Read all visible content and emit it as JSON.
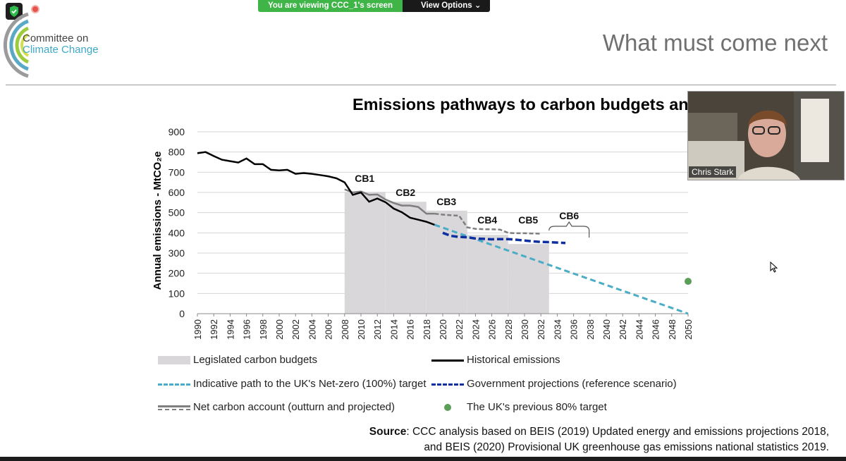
{
  "zoom": {
    "viewing_text": "You are viewing CCC_1's screen",
    "view_options": "View Options"
  },
  "slide": {
    "org_line1": "Committee on",
    "org_line2": "Climate Change",
    "title": "What must come next",
    "chart_title": "Emissions pathways to carbon budgets and t",
    "source_label": "Source",
    "source_line1": ": CCC analysis based on BEIS (2019) Updated energy and emissions projections 2018,",
    "source_line2": "and BEIS (2020) Provisional UK greenhouse gas emissions national statistics 2019."
  },
  "video": {
    "participant_name": "Chris Stark"
  },
  "legend": {
    "budgets": "Legislated carbon budgets",
    "historical": "Historical emissions",
    "netzero": "Indicative path to the UK's Net-zero (100%) target",
    "govt": "Government projections (reference scenario)",
    "netcarbon": "Net carbon account (outturn and projected)",
    "target80": "The UK's previous 80% target"
  },
  "colors": {
    "budget_fill": "#d9d7da",
    "historical": "#000000",
    "netzero": "#4bacc6",
    "govt": "#0e2fa0",
    "netcarbon": "#7f7f7f",
    "target80": "#5a9e57",
    "zoom_green": "#3fb548"
  },
  "chart_data": {
    "type": "line",
    "ylabel": "Annual emissions - MtCO₂e",
    "ylim": [
      0,
      900
    ],
    "yticks": [
      0,
      100,
      200,
      300,
      400,
      500,
      600,
      700,
      800,
      900
    ],
    "xlim": [
      1990,
      2050
    ],
    "xticks": [
      1990,
      1992,
      1994,
      1996,
      1998,
      2000,
      2002,
      2004,
      2006,
      2008,
      2010,
      2012,
      2014,
      2016,
      2018,
      2020,
      2022,
      2024,
      2026,
      2028,
      2030,
      2032,
      2034,
      2036,
      2038,
      2040,
      2042,
      2044,
      2046,
      2048,
      2050
    ],
    "grid": true,
    "carbon_budgets": [
      {
        "label": "CB1",
        "x0": 2008,
        "x1": 2012.9,
        "value": 603
      },
      {
        "label": "CB2",
        "x0": 2013,
        "x1": 2017.9,
        "value": 554
      },
      {
        "label": "CB3",
        "x0": 2018,
        "x1": 2022.9,
        "value": 510
      },
      {
        "label": "CB4",
        "x0": 2023,
        "x1": 2027.9,
        "value": 390
      },
      {
        "label": "CB5",
        "x0": 2028,
        "x1": 2032.9,
        "value": 345
      },
      {
        "label": "CB6",
        "x0": 2033,
        "x1": 2037.9,
        "value": null
      }
    ],
    "series": [
      {
        "name": "Historical emissions",
        "x": [
          1990,
          1991,
          1992,
          1993,
          1994,
          1995,
          1996,
          1997,
          1998,
          1999,
          2000,
          2001,
          2002,
          2003,
          2004,
          2005,
          2006,
          2007,
          2008,
          2009,
          2010,
          2011,
          2012,
          2013,
          2014,
          2015,
          2016,
          2017,
          2018,
          2019
        ],
        "values": [
          794,
          800,
          780,
          762,
          755,
          748,
          768,
          740,
          740,
          712,
          709,
          712,
          692,
          696,
          692,
          686,
          680,
          670,
          650,
          588,
          600,
          554,
          570,
          552,
          520,
          502,
          475,
          465,
          455,
          440
        ]
      },
      {
        "name": "Net carbon account (outturn and projected)",
        "x": [
          2008,
          2009,
          2010,
          2011,
          2012,
          2013,
          2014,
          2015,
          2016,
          2017,
          2018,
          2019,
          2020,
          2021,
          2022,
          2023,
          2024,
          2025,
          2026,
          2027,
          2028,
          2029,
          2030,
          2031,
          2032
        ],
        "values": [
          615,
          600,
          605,
          588,
          590,
          565,
          548,
          535,
          535,
          528,
          495,
          495,
          490,
          487,
          485,
          427,
          420,
          418,
          418,
          416,
          400,
          398,
          398,
          397,
          396
        ]
      },
      {
        "name": "Government projections (reference scenario)",
        "x": [
          2020,
          2021,
          2022,
          2023,
          2024,
          2025,
          2026,
          2027,
          2028,
          2029,
          2030,
          2031,
          2032,
          2033,
          2034,
          2035
        ],
        "values": [
          400,
          385,
          380,
          378,
          372,
          370,
          368,
          369,
          369,
          366,
          362,
          358,
          355,
          354,
          352,
          350
        ]
      },
      {
        "name": "Indicative path to the UK's Net-zero (100%) target",
        "x": [
          2019,
          2050
        ],
        "values": [
          440,
          0
        ]
      },
      {
        "name": "The UK's previous 80% target",
        "x": [
          2050
        ],
        "values": [
          160
        ]
      }
    ]
  }
}
